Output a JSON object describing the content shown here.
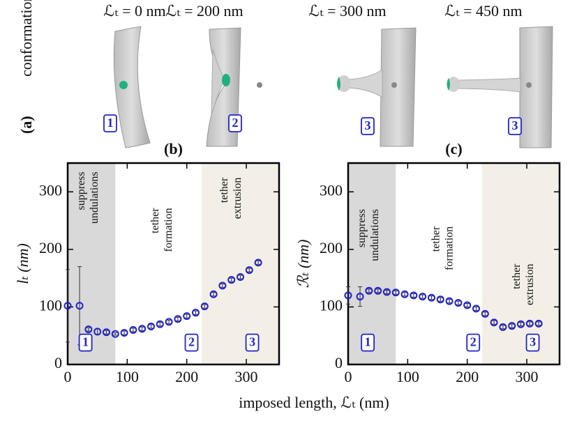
{
  "figure": {
    "panel": "(a)",
    "label": "conformations",
    "x_label": "imposed length, ℒₜ (nm)",
    "conformations": [
      {
        "label": "ℒₜ = 0 nm",
        "number": "1"
      },
      {
        "label": "ℒₜ = 200 nm",
        "number": "2"
      },
      {
        "label": "ℒₜ = 300 nm",
        "number": "3"
      },
      {
        "label": "ℒₜ = 450 nm",
        "number": "3"
      }
    ]
  },
  "chart_data": [
    {
      "type": "scatter",
      "title": "(b)",
      "y_label": "lₜ (nm)",
      "color": "#1f1fd0",
      "errorbar_color": "#333333",
      "xlim": [
        0,
        355
      ],
      "ylim": [
        0,
        350
      ],
      "xticks": [
        0,
        100,
        200,
        300
      ],
      "yticks": [
        0,
        100,
        200,
        300
      ],
      "x": [
        0,
        20,
        35,
        50,
        65,
        80,
        95,
        110,
        125,
        140,
        155,
        170,
        185,
        200,
        215,
        230,
        245,
        260,
        275,
        290,
        305,
        320
      ],
      "values": [
        102,
        102,
        61,
        57,
        56,
        53,
        55,
        60,
        62,
        66,
        70,
        74,
        79,
        84,
        90,
        101,
        122,
        137,
        147,
        152,
        164,
        177
      ],
      "errors": [
        63,
        68,
        3,
        5,
        3,
        2,
        3,
        3,
        3,
        3,
        3,
        3,
        3,
        3,
        3,
        3,
        3,
        3,
        3,
        3,
        3,
        3
      ],
      "shaded_regions": [
        {
          "from": 0,
          "to": 80,
          "color": "#d9d9d9"
        },
        {
          "from": 225,
          "to": 355,
          "color": "#f3efe6"
        }
      ],
      "region_labels": [
        {
          "lines": [
            "suppress",
            "undulations"
          ],
          "x": 35,
          "y": 335
        },
        {
          "lines": [
            "tether",
            "formation"
          ],
          "x": 159,
          "y": 272
        },
        {
          "lines": [
            "tether",
            "extrusion"
          ],
          "x": 275,
          "y": 325
        }
      ],
      "markers": [
        {
          "text": "1",
          "x": 30,
          "y": 38
        },
        {
          "text": "2",
          "x": 208,
          "y": 38
        },
        {
          "text": "3",
          "x": 310,
          "y": 38
        }
      ]
    },
    {
      "type": "scatter",
      "title": "(c)",
      "y_label": "ℛₜ (nm)",
      "color": "#1f1fd0",
      "errorbar_color": "#333333",
      "xlim": [
        0,
        355
      ],
      "ylim": [
        0,
        350
      ],
      "xticks": [
        0,
        100,
        200,
        300
      ],
      "yticks": [
        0,
        100,
        200,
        300
      ],
      "x": [
        0,
        20,
        35,
        50,
        65,
        80,
        95,
        110,
        125,
        140,
        155,
        170,
        185,
        200,
        215,
        230,
        245,
        260,
        275,
        290,
        305,
        320
      ],
      "values": [
        120,
        118,
        128,
        128,
        126,
        125,
        122,
        120,
        118,
        116,
        113,
        110,
        107,
        103,
        97,
        88,
        73,
        65,
        67,
        70,
        71,
        71
      ],
      "errors": [
        15,
        17,
        3,
        3,
        3,
        3,
        3,
        3,
        3,
        3,
        3,
        3,
        3,
        3,
        3,
        3,
        3,
        3,
        3,
        3,
        3,
        3
      ],
      "shaded_regions": [
        {
          "from": 0,
          "to": 80,
          "color": "#d9d9d9"
        },
        {
          "from": 225,
          "to": 355,
          "color": "#f3efe6"
        }
      ],
      "region_labels": [
        {
          "lines": [
            "suppress",
            "undulations"
          ],
          "x": 35,
          "y": 270
        },
        {
          "lines": [
            "tether",
            "formation"
          ],
          "x": 160,
          "y": 240
        },
        {
          "lines": [
            "tether",
            "extrusion"
          ],
          "x": 295,
          "y": 175
        }
      ],
      "markers": [
        {
          "text": "1",
          "x": 33,
          "y": 38
        },
        {
          "text": "2",
          "x": 210,
          "y": 38
        },
        {
          "text": "3",
          "x": 310,
          "y": 38
        }
      ]
    }
  ]
}
